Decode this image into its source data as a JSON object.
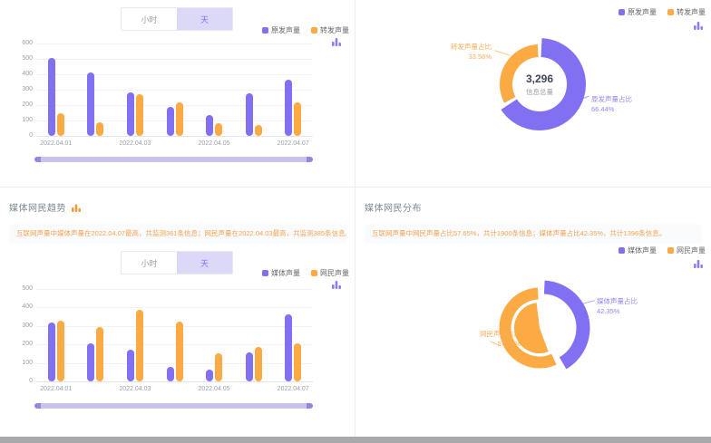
{
  "colors": {
    "purple": "#8170F2",
    "orange": "#FCAA44",
    "toggle_active_bg": "#DCD9F8",
    "desc_text": "#F5A352"
  },
  "toggle": {
    "options": [
      "小时",
      "天"
    ],
    "selected": "天"
  },
  "panels": {
    "origin_trend": {
      "legend": [
        "原发声量",
        "转发声量"
      ]
    },
    "origin_dist": {
      "legend": [
        "原发声量",
        "转发声量"
      ]
    },
    "media_trend": {
      "title": "媒体网民趋势",
      "desc": "互联网声量中媒体声量在2022.04.07最高，共监测361条信息；网民声量在2022.04.03最高，共监测385条信息。",
      "legend": [
        "媒体声量",
        "网民声量"
      ]
    },
    "media_dist": {
      "title": "媒体网民分布",
      "desc": "互联网声量中网民声量占比57.65%，共计1900条信息；媒体声量占比42.35%，共计1396条信息。",
      "legend": [
        "媒体声量",
        "网民声量"
      ]
    }
  },
  "chart_data": [
    {
      "type": "bar",
      "categories": [
        "2022.04.01",
        "2022.04.02",
        "2022.04.03",
        "2022.04.04",
        "2022.04.05",
        "2022.04.06",
        "2022.04.07"
      ],
      "series": [
        {
          "name": "原发声量",
          "color": "#8170F2",
          "values": [
            505,
            410,
            280,
            190,
            135,
            275,
            365
          ]
        },
        {
          "name": "转发声量",
          "color": "#FCAA44",
          "values": [
            145,
            90,
            270,
            215,
            80,
            70,
            215
          ]
        }
      ],
      "ylim": [
        0,
        600
      ],
      "yticks": [
        0,
        100,
        200,
        300,
        400,
        500,
        600
      ],
      "grid": true,
      "legend_position": "top-right"
    },
    {
      "type": "pie",
      "center_value": "3,296",
      "center_label": "信息总量",
      "slices": [
        {
          "name": "原发声量占比",
          "value": 66.44,
          "pct_label": "66.44%",
          "color": "#8170F2"
        },
        {
          "name": "转发声量占比",
          "value": 33.56,
          "pct_label": "33.56%",
          "color": "#FCAA44"
        }
      ],
      "legend_position": "top-right"
    },
    {
      "type": "bar",
      "categories": [
        "2022.04.01",
        "2022.04.02",
        "2022.04.03",
        "2022.04.04",
        "2022.04.05",
        "2022.04.06",
        "2022.04.07"
      ],
      "series": [
        {
          "name": "媒体声量",
          "color": "#8170F2",
          "values": [
            320,
            205,
            170,
            80,
            65,
            155,
            361
          ]
        },
        {
          "name": "网民声量",
          "color": "#FCAA44",
          "values": [
            330,
            295,
            385,
            325,
            150,
            185,
            205
          ]
        }
      ],
      "ylim": [
        0,
        500
      ],
      "yticks": [
        0,
        100,
        200,
        300,
        400,
        500
      ],
      "grid": true,
      "legend_position": "top-right"
    },
    {
      "type": "pie",
      "slices": [
        {
          "name": "媒体声量占比",
          "value": 42.35,
          "pct_label": "42.35%",
          "color": "#8170F2"
        },
        {
          "name": "网民声量占比",
          "value": 57.65,
          "pct_label": "57.65%",
          "color": "#FCAA44"
        }
      ],
      "legend_position": "top-right"
    }
  ]
}
